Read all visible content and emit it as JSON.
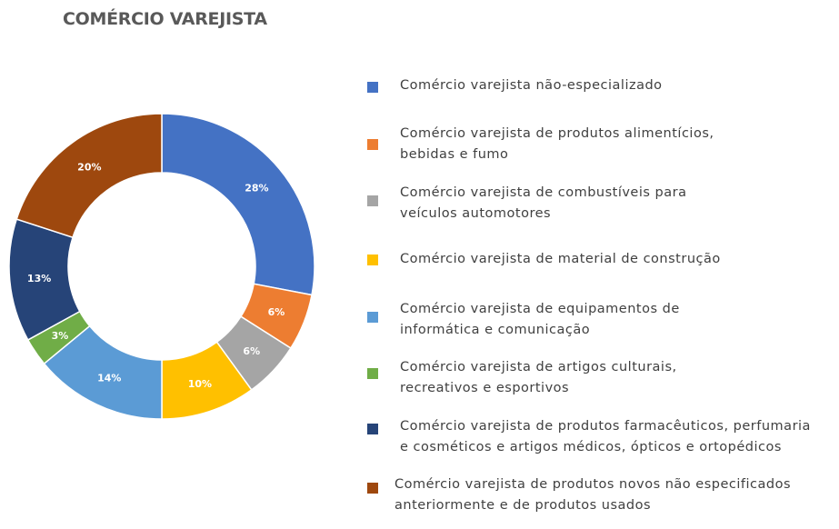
{
  "chart_data": {
    "type": "pie",
    "title": "COMÉRCIO VAREJISTA",
    "categories": [
      "Comércio varejista não-especializado",
      "Comércio varejista de produtos alimentícios, bebidas e fumo",
      "Comércio varejista de combustíveis para veículos automotores",
      "Comércio varejista de material de construção",
      "Comércio varejista de equipamentos de informática e comunicação",
      "Comércio varejista de artigos culturais, recreativos e esportivos",
      "Comércio varejista de produtos farmacêuticos, perfumaria e cosméticos e artigos médicos, ópticos e ortopédicos",
      "Comércio varejista de produtos novos não especificados anteriormente e de produtos usados"
    ],
    "values": [
      28,
      6,
      6,
      10,
      14,
      3,
      13,
      20
    ],
    "labels": [
      "28%",
      "6%",
      "6%",
      "10%",
      "14%",
      "3%",
      "13%",
      "20%"
    ],
    "colors": [
      "#4472C4",
      "#ED7D31",
      "#A5A5A5",
      "#FFC000",
      "#5B9BD5",
      "#70AD47",
      "#264478",
      "#9E480E"
    ],
    "legend_position": "right",
    "donut": true
  },
  "legend": [
    {
      "line1": "Comércio varejista não-especializado",
      "line2": ""
    },
    {
      "line1": "Comércio varejista de produtos alimentícios,",
      "line2": "bebidas e fumo"
    },
    {
      "line1": "Comércio varejista de combustíveis para",
      "line2": "veículos automotores"
    },
    {
      "line1": "Comércio varejista de material de construção",
      "line2": ""
    },
    {
      "line1": "Comércio varejista de equipamentos de",
      "line2": "informática e comunicação"
    },
    {
      "line1": "Comércio varejista de artigos culturais,",
      "line2": "recreativos e esportivos"
    },
    {
      "line1": "Comércio varejista de produtos farmacêuticos, perfumaria",
      "line2": "e cosméticos e artigos médicos, ópticos e ortopédicos"
    },
    {
      "line1": "Comércio varejista de produtos novos não especificados",
      "line2": "anteriormente e de produtos usados"
    }
  ]
}
